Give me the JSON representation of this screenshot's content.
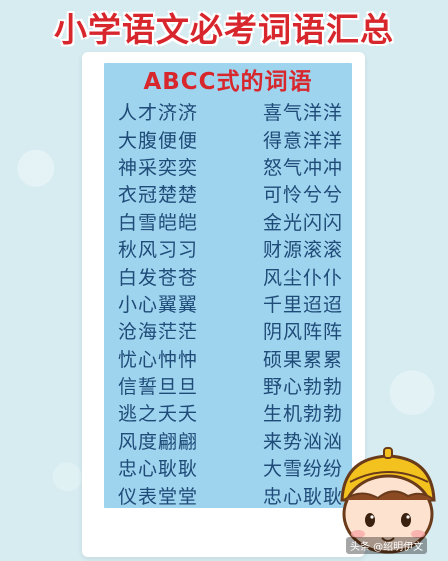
{
  "header": {
    "title": "小学语文必考词语汇总"
  },
  "card": {
    "subtitle": "ABCC式的词语",
    "rows": [
      [
        "人才济济",
        "喜气洋洋"
      ],
      [
        "大腹便便",
        "得意洋洋"
      ],
      [
        "神采奕奕",
        "怒气冲冲"
      ],
      [
        "衣冠楚楚",
        "可怜兮兮"
      ],
      [
        "白雪皑皑",
        "金光闪闪"
      ],
      [
        "秋风习习",
        "财源滚滚"
      ],
      [
        "白发苍苍",
        "风尘仆仆"
      ],
      [
        "小心翼翼",
        "千里迢迢"
      ],
      [
        "沧海茫茫",
        "阴风阵阵"
      ],
      [
        "忧心忡忡",
        "硕果累累"
      ],
      [
        "信誓旦旦",
        "野心勃勃"
      ],
      [
        "逃之夭夭",
        "生机勃勃"
      ],
      [
        "风度翩翩",
        "来势汹汹"
      ],
      [
        "忠心耿耿",
        "大雪纷纷"
      ],
      [
        "仪表堂堂",
        "忠心耿耿"
      ]
    ]
  },
  "watermark": "头条 @绍明伊文",
  "colors": {
    "title": "#d8262d",
    "words": "#1f4b78",
    "card": "#9fd4ee",
    "background": "#d6ecf1"
  }
}
